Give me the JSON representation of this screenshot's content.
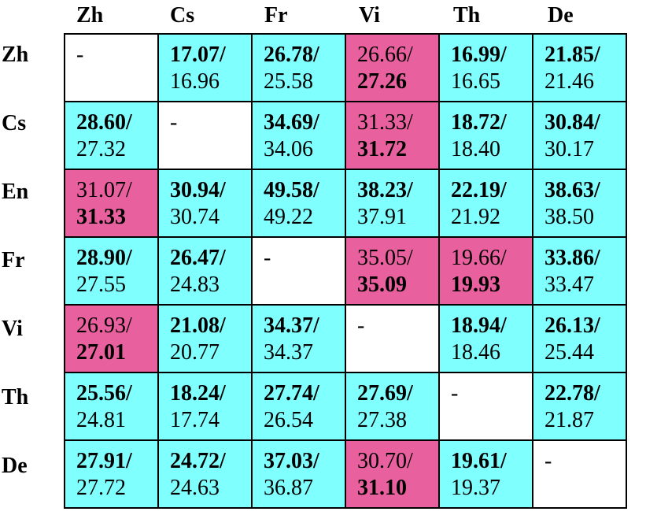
{
  "columns": [
    "Zh",
    "Cs",
    "Fr",
    "Vi",
    "Th",
    "De"
  ],
  "rows": [
    {
      "label": "Zh",
      "cells": [
        {
          "type": "blank",
          "text": "-"
        },
        {
          "type": "cyan",
          "top": "17.07/",
          "bottom": "16.96",
          "bold": "top"
        },
        {
          "type": "cyan",
          "top": "26.78/",
          "bottom": "25.58",
          "bold": "top"
        },
        {
          "type": "pink",
          "top": "26.66/",
          "bottom": "27.26",
          "bold": "bottom"
        },
        {
          "type": "cyan",
          "top": "16.99/",
          "bottom": "16.65",
          "bold": "top"
        },
        {
          "type": "cyan",
          "top": "21.85/",
          "bottom": "21.46",
          "bold": "top"
        }
      ]
    },
    {
      "label": "Cs",
      "cells": [
        {
          "type": "cyan",
          "top": "28.60/",
          "bottom": "27.32",
          "bold": "top"
        },
        {
          "type": "blank",
          "text": "-"
        },
        {
          "type": "cyan",
          "top": "34.69/",
          "bottom": "34.06",
          "bold": "top"
        },
        {
          "type": "pink",
          "top": "31.33/",
          "bottom": "31.72",
          "bold": "bottom"
        },
        {
          "type": "cyan",
          "top": "18.72/",
          "bottom": "18.40",
          "bold": "top"
        },
        {
          "type": "cyan",
          "top": "30.84/",
          "bottom": "30.17",
          "bold": "top"
        }
      ]
    },
    {
      "label": "En",
      "cells": [
        {
          "type": "pink",
          "top": "31.07/",
          "bottom": "31.33",
          "bold": "bottom"
        },
        {
          "type": "cyan",
          "top": "30.94/",
          "bottom": "30.74",
          "bold": "top"
        },
        {
          "type": "cyan",
          "top": "49.58/",
          "bottom": "49.22",
          "bold": "top"
        },
        {
          "type": "cyan",
          "top": "38.23/",
          "bottom": "37.91",
          "bold": "top"
        },
        {
          "type": "cyan",
          "top": "22.19/",
          "bottom": "21.92",
          "bold": "top"
        },
        {
          "type": "cyan",
          "top": "38.63/",
          "bottom": "38.50",
          "bold": "top"
        }
      ]
    },
    {
      "label": "Fr",
      "cells": [
        {
          "type": "cyan",
          "top": "28.90/",
          "bottom": "27.55",
          "bold": "top"
        },
        {
          "type": "cyan",
          "top": "26.47/",
          "bottom": "24.83",
          "bold": "top"
        },
        {
          "type": "blank",
          "text": "-"
        },
        {
          "type": "pink",
          "top": "35.05/",
          "bottom": "35.09",
          "bold": "bottom"
        },
        {
          "type": "pink",
          "top": "19.66/",
          "bottom": "19.93",
          "bold": "bottom"
        },
        {
          "type": "cyan",
          "top": "33.86/",
          "bottom": "33.47",
          "bold": "top"
        }
      ]
    },
    {
      "label": "Vi",
      "cells": [
        {
          "type": "pink",
          "top": "26.93/",
          "bottom": "27.01",
          "bold": "bottom"
        },
        {
          "type": "cyan",
          "top": "21.08/",
          "bottom": "20.77",
          "bold": "top"
        },
        {
          "type": "cyan",
          "top": "34.37/",
          "bottom": "34.37",
          "bold": "top"
        },
        {
          "type": "blank",
          "text": "-"
        },
        {
          "type": "cyan",
          "top": "18.94/",
          "bottom": "18.46",
          "bold": "top"
        },
        {
          "type": "cyan",
          "top": "26.13/",
          "bottom": "25.44",
          "bold": "top"
        }
      ]
    },
    {
      "label": "Th",
      "cells": [
        {
          "type": "cyan",
          "top": "25.56/",
          "bottom": "24.81",
          "bold": "top"
        },
        {
          "type": "cyan",
          "top": "18.24/",
          "bottom": "17.74",
          "bold": "top"
        },
        {
          "type": "cyan",
          "top": "27.74/",
          "bottom": "26.54",
          "bold": "top"
        },
        {
          "type": "cyan",
          "top": "27.69/",
          "bottom": "27.38",
          "bold": "top"
        },
        {
          "type": "blank",
          "text": "-"
        },
        {
          "type": "cyan",
          "top": "22.78/",
          "bottom": "21.87",
          "bold": "top"
        }
      ]
    },
    {
      "label": "De",
      "cells": [
        {
          "type": "cyan",
          "top": "27.91/",
          "bottom": "27.72",
          "bold": "top"
        },
        {
          "type": "cyan",
          "top": "24.72/",
          "bottom": "24.63",
          "bold": "top"
        },
        {
          "type": "cyan",
          "top": "37.03/",
          "bottom": "36.87",
          "bold": "top"
        },
        {
          "type": "pink",
          "top": "30.70/",
          "bottom": "31.10",
          "bold": "bottom"
        },
        {
          "type": "cyan",
          "top": "19.61/",
          "bottom": "19.37",
          "bold": "top"
        },
        {
          "type": "blank",
          "text": "-"
        }
      ]
    }
  ],
  "colors": {
    "cyan": "#80ffff",
    "pink": "#e8609e",
    "blank": "#ffffff"
  }
}
